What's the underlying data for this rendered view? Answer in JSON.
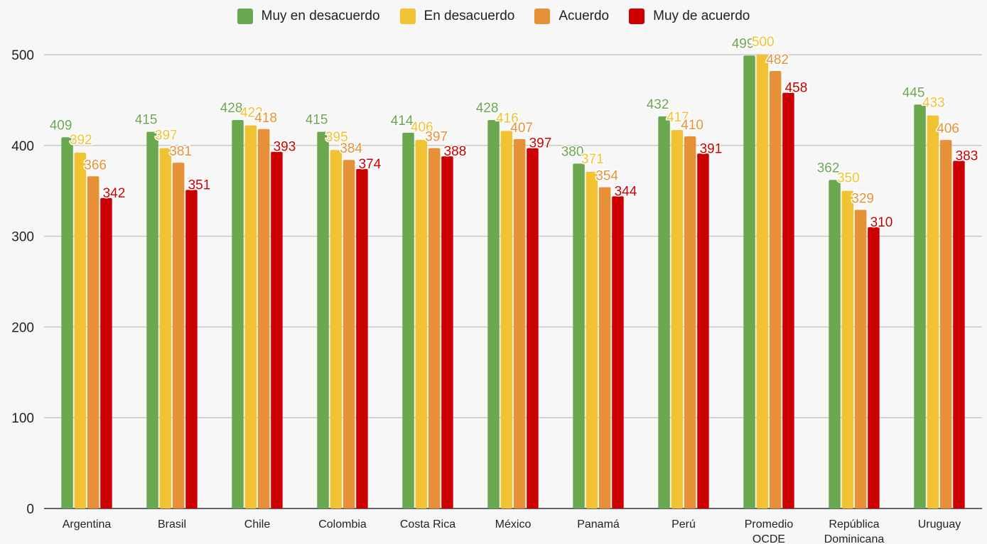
{
  "chart_data": {
    "type": "bar",
    "title": "",
    "xlabel": "",
    "ylabel": "",
    "ylim": [
      0,
      500
    ],
    "yticks": [
      0,
      100,
      200,
      300,
      400,
      500
    ],
    "grid": true,
    "legend_position": "top",
    "categories": [
      [
        "Argentina"
      ],
      [
        "Brasil"
      ],
      [
        "Chile"
      ],
      [
        "Colombia"
      ],
      [
        "Costa Rica"
      ],
      [
        "México"
      ],
      [
        "Panamá"
      ],
      [
        "Perú"
      ],
      [
        "Promedio",
        "OCDE"
      ],
      [
        "República",
        "Dominicana"
      ],
      [
        "Uruguay"
      ]
    ],
    "series": [
      {
        "name": "Muy en desacuerdo",
        "color": "#6aa84f",
        "values": [
          409,
          415,
          428,
          415,
          414,
          428,
          380,
          432,
          499,
          362,
          445
        ]
      },
      {
        "name": "En desacuerdo",
        "color": "#f1c232",
        "values": [
          392,
          397,
          422,
          395,
          406,
          416,
          371,
          417,
          500,
          350,
          433
        ]
      },
      {
        "name": "Acuerdo",
        "color": "#e69138",
        "values": [
          366,
          381,
          418,
          384,
          397,
          407,
          354,
          410,
          482,
          329,
          406
        ]
      },
      {
        "name": "Muy de acuerdo",
        "color": "#cc0000",
        "values": [
          342,
          351,
          393,
          374,
          388,
          397,
          344,
          391,
          458,
          310,
          383
        ]
      }
    ]
  }
}
